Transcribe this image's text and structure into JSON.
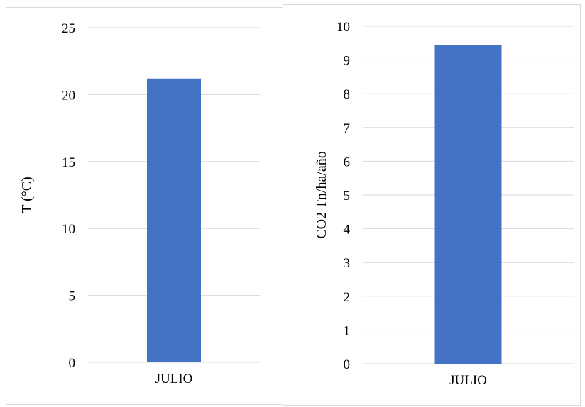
{
  "chart_data": [
    {
      "type": "bar",
      "categories": [
        "JULIO"
      ],
      "values": [
        21.2
      ],
      "ylabel": "T (°C)",
      "ylim": [
        0,
        25
      ],
      "yticks": [
        0,
        5,
        10,
        15,
        20,
        25
      ],
      "grid": true,
      "bar_color": "#4472C4",
      "grid_color": "#d9d9d9"
    },
    {
      "type": "bar",
      "categories": [
        "JULIO"
      ],
      "values": [
        9.45
      ],
      "ylabel": "CO2 Tn/ha/año",
      "ylim": [
        0,
        10
      ],
      "yticks": [
        0,
        1,
        2,
        3,
        4,
        5,
        6,
        7,
        8,
        9,
        10
      ],
      "grid": true,
      "bar_color": "#4472C4",
      "grid_color": "#d9d9d9"
    }
  ]
}
